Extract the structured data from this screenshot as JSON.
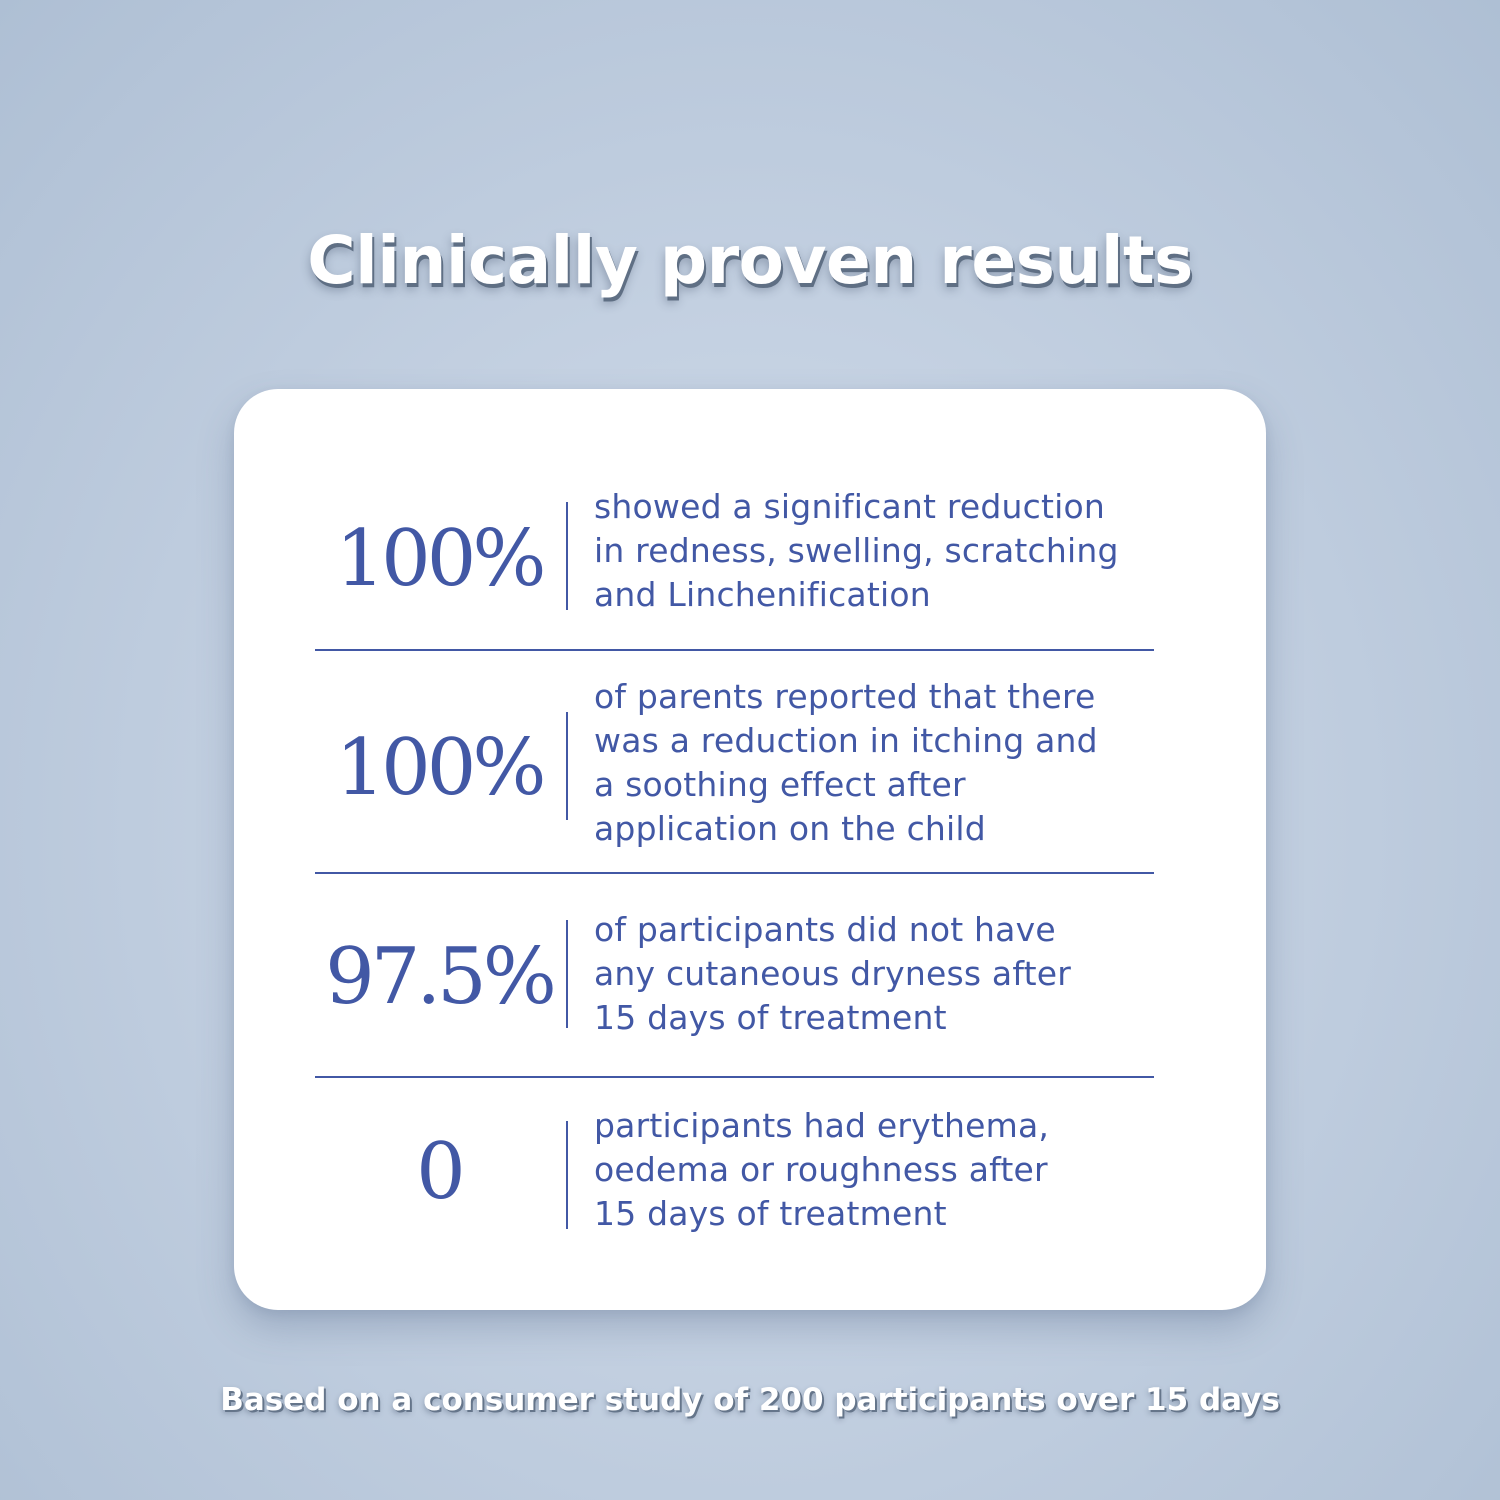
{
  "title": "Clinically proven results",
  "stats": [
    {
      "value": "100%",
      "description": "showed a significant reduction\nin redness, swelling, scratching\nand Linchenification"
    },
    {
      "value": "100%",
      "description": "of parents reported that there\nwas a reduction in itching and\na soothing effect after\napplication on the child"
    },
    {
      "value": "97.5%",
      "description": "of participants did not have\nany cutaneous dryness after\n15 days of treatment"
    },
    {
      "value": "0",
      "description": "participants had erythema,\noedema or roughness after\n15 days of treatment"
    }
  ],
  "footnote": "Based on a consumer study of 200 participants over 15 days",
  "colors": {
    "accent": "#4258a5",
    "background": "#c3d0e1",
    "card": "#ffffff",
    "title": "#ffffff"
  }
}
